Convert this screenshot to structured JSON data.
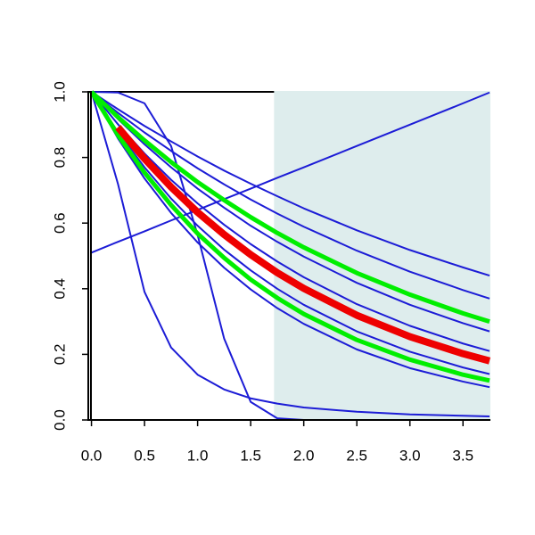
{
  "chart_data": {
    "type": "line",
    "x": [
      0,
      0.25,
      0.5,
      0.75,
      1,
      1.25,
      1.5,
      1.75,
      2,
      2.5,
      3,
      3.5,
      3.75
    ],
    "xlim": [
      -0.03,
      3.75
    ],
    "ylim": [
      0,
      1
    ],
    "xticks": [
      {
        "value": 0,
        "label": "0.0"
      },
      {
        "value": 0.5,
        "label": "0.5"
      },
      {
        "value": 1,
        "label": "1.0"
      },
      {
        "value": 1.5,
        "label": "1.5"
      },
      {
        "value": 2,
        "label": "2.0"
      },
      {
        "value": 2.5,
        "label": "2.5"
      },
      {
        "value": 3,
        "label": "3.0"
      },
      {
        "value": 3.5,
        "label": "3.5"
      }
    ],
    "yticks": [
      {
        "value": 0,
        "label": "0.0"
      },
      {
        "value": 0.2,
        "label": "0.2"
      },
      {
        "value": 0.4,
        "label": "0.4"
      },
      {
        "value": 0.6,
        "label": "0.6"
      },
      {
        "value": 0.8,
        "label": "0.8"
      },
      {
        "value": 1,
        "label": "1.0"
      }
    ],
    "shaded_region": {
      "x": [
        1.72,
        3.75
      ],
      "color": "#deeded"
    },
    "series": [
      {
        "color": "#1c1cd6",
        "width": 2,
        "values": [
          0.51,
          0.543,
          0.575,
          0.608,
          0.64,
          0.673,
          0.705,
          0.738,
          0.77,
          0.835,
          0.9,
          0.965,
          0.998
        ]
      },
      {
        "color": "#1c1cd6",
        "width": 2,
        "values": [
          1,
          0.719,
          0.39,
          0.221,
          0.138,
          0.093,
          0.066,
          0.05,
          0.038,
          0.025,
          0.017,
          0.013,
          0.011
        ]
      },
      {
        "color": "#1c1cd6",
        "width": 2,
        "values": [
          1,
          0.998,
          0.965,
          0.835,
          0.564,
          0.248,
          0.055,
          0.005,
          0,
          0,
          0,
          0,
          0
        ]
      },
      {
        "color": "#1c1cd6",
        "width": 2,
        "values": [
          1,
          0.947,
          0.896,
          0.849,
          0.803,
          0.76,
          0.72,
          0.682,
          0.645,
          0.578,
          0.518,
          0.465,
          0.44
        ]
      },
      {
        "color": "#1c1cd6",
        "width": 2,
        "values": [
          1,
          0.936,
          0.876,
          0.82,
          0.767,
          0.718,
          0.672,
          0.629,
          0.589,
          0.516,
          0.452,
          0.396,
          0.37
        ]
      },
      {
        "color": "#1c1cd6",
        "width": 2,
        "values": [
          1,
          0.917,
          0.84,
          0.77,
          0.705,
          0.647,
          0.592,
          0.543,
          0.498,
          0.418,
          0.351,
          0.295,
          0.27
        ]
      },
      {
        "color": "#1c1cd6",
        "width": 2,
        "values": [
          1,
          0.901,
          0.812,
          0.732,
          0.66,
          0.595,
          0.536,
          0.483,
          0.435,
          0.353,
          0.287,
          0.233,
          0.21
        ]
      },
      {
        "color": "#1c1cd6",
        "width": 2,
        "values": [
          1,
          0.877,
          0.77,
          0.675,
          0.592,
          0.519,
          0.456,
          0.4,
          0.351,
          0.27,
          0.208,
          0.16,
          0.14
        ]
      },
      {
        "color": "#1c1cd6",
        "width": 2,
        "values": [
          1,
          0.858,
          0.736,
          0.631,
          0.541,
          0.464,
          0.398,
          0.341,
          0.293,
          0.215,
          0.158,
          0.117,
          0.1
        ]
      },
      {
        "color": "#00ee00",
        "width": 5,
        "values": [
          1,
          0.923,
          0.852,
          0.786,
          0.725,
          0.67,
          0.618,
          0.57,
          0.526,
          0.448,
          0.382,
          0.325,
          0.3
        ]
      },
      {
        "color": "#00ee00",
        "width": 5,
        "values": [
          1,
          0.868,
          0.754,
          0.655,
          0.568,
          0.494,
          0.428,
          0.372,
          0.323,
          0.244,
          0.184,
          0.138,
          0.12
        ]
      },
      {
        "color": "#ee0000",
        "width": 8,
        "values": [
          null,
          0.892,
          0.796,
          0.71,
          0.633,
          0.565,
          0.504,
          0.449,
          0.401,
          0.319,
          0.254,
          0.202,
          0.18
        ]
      }
    ]
  }
}
